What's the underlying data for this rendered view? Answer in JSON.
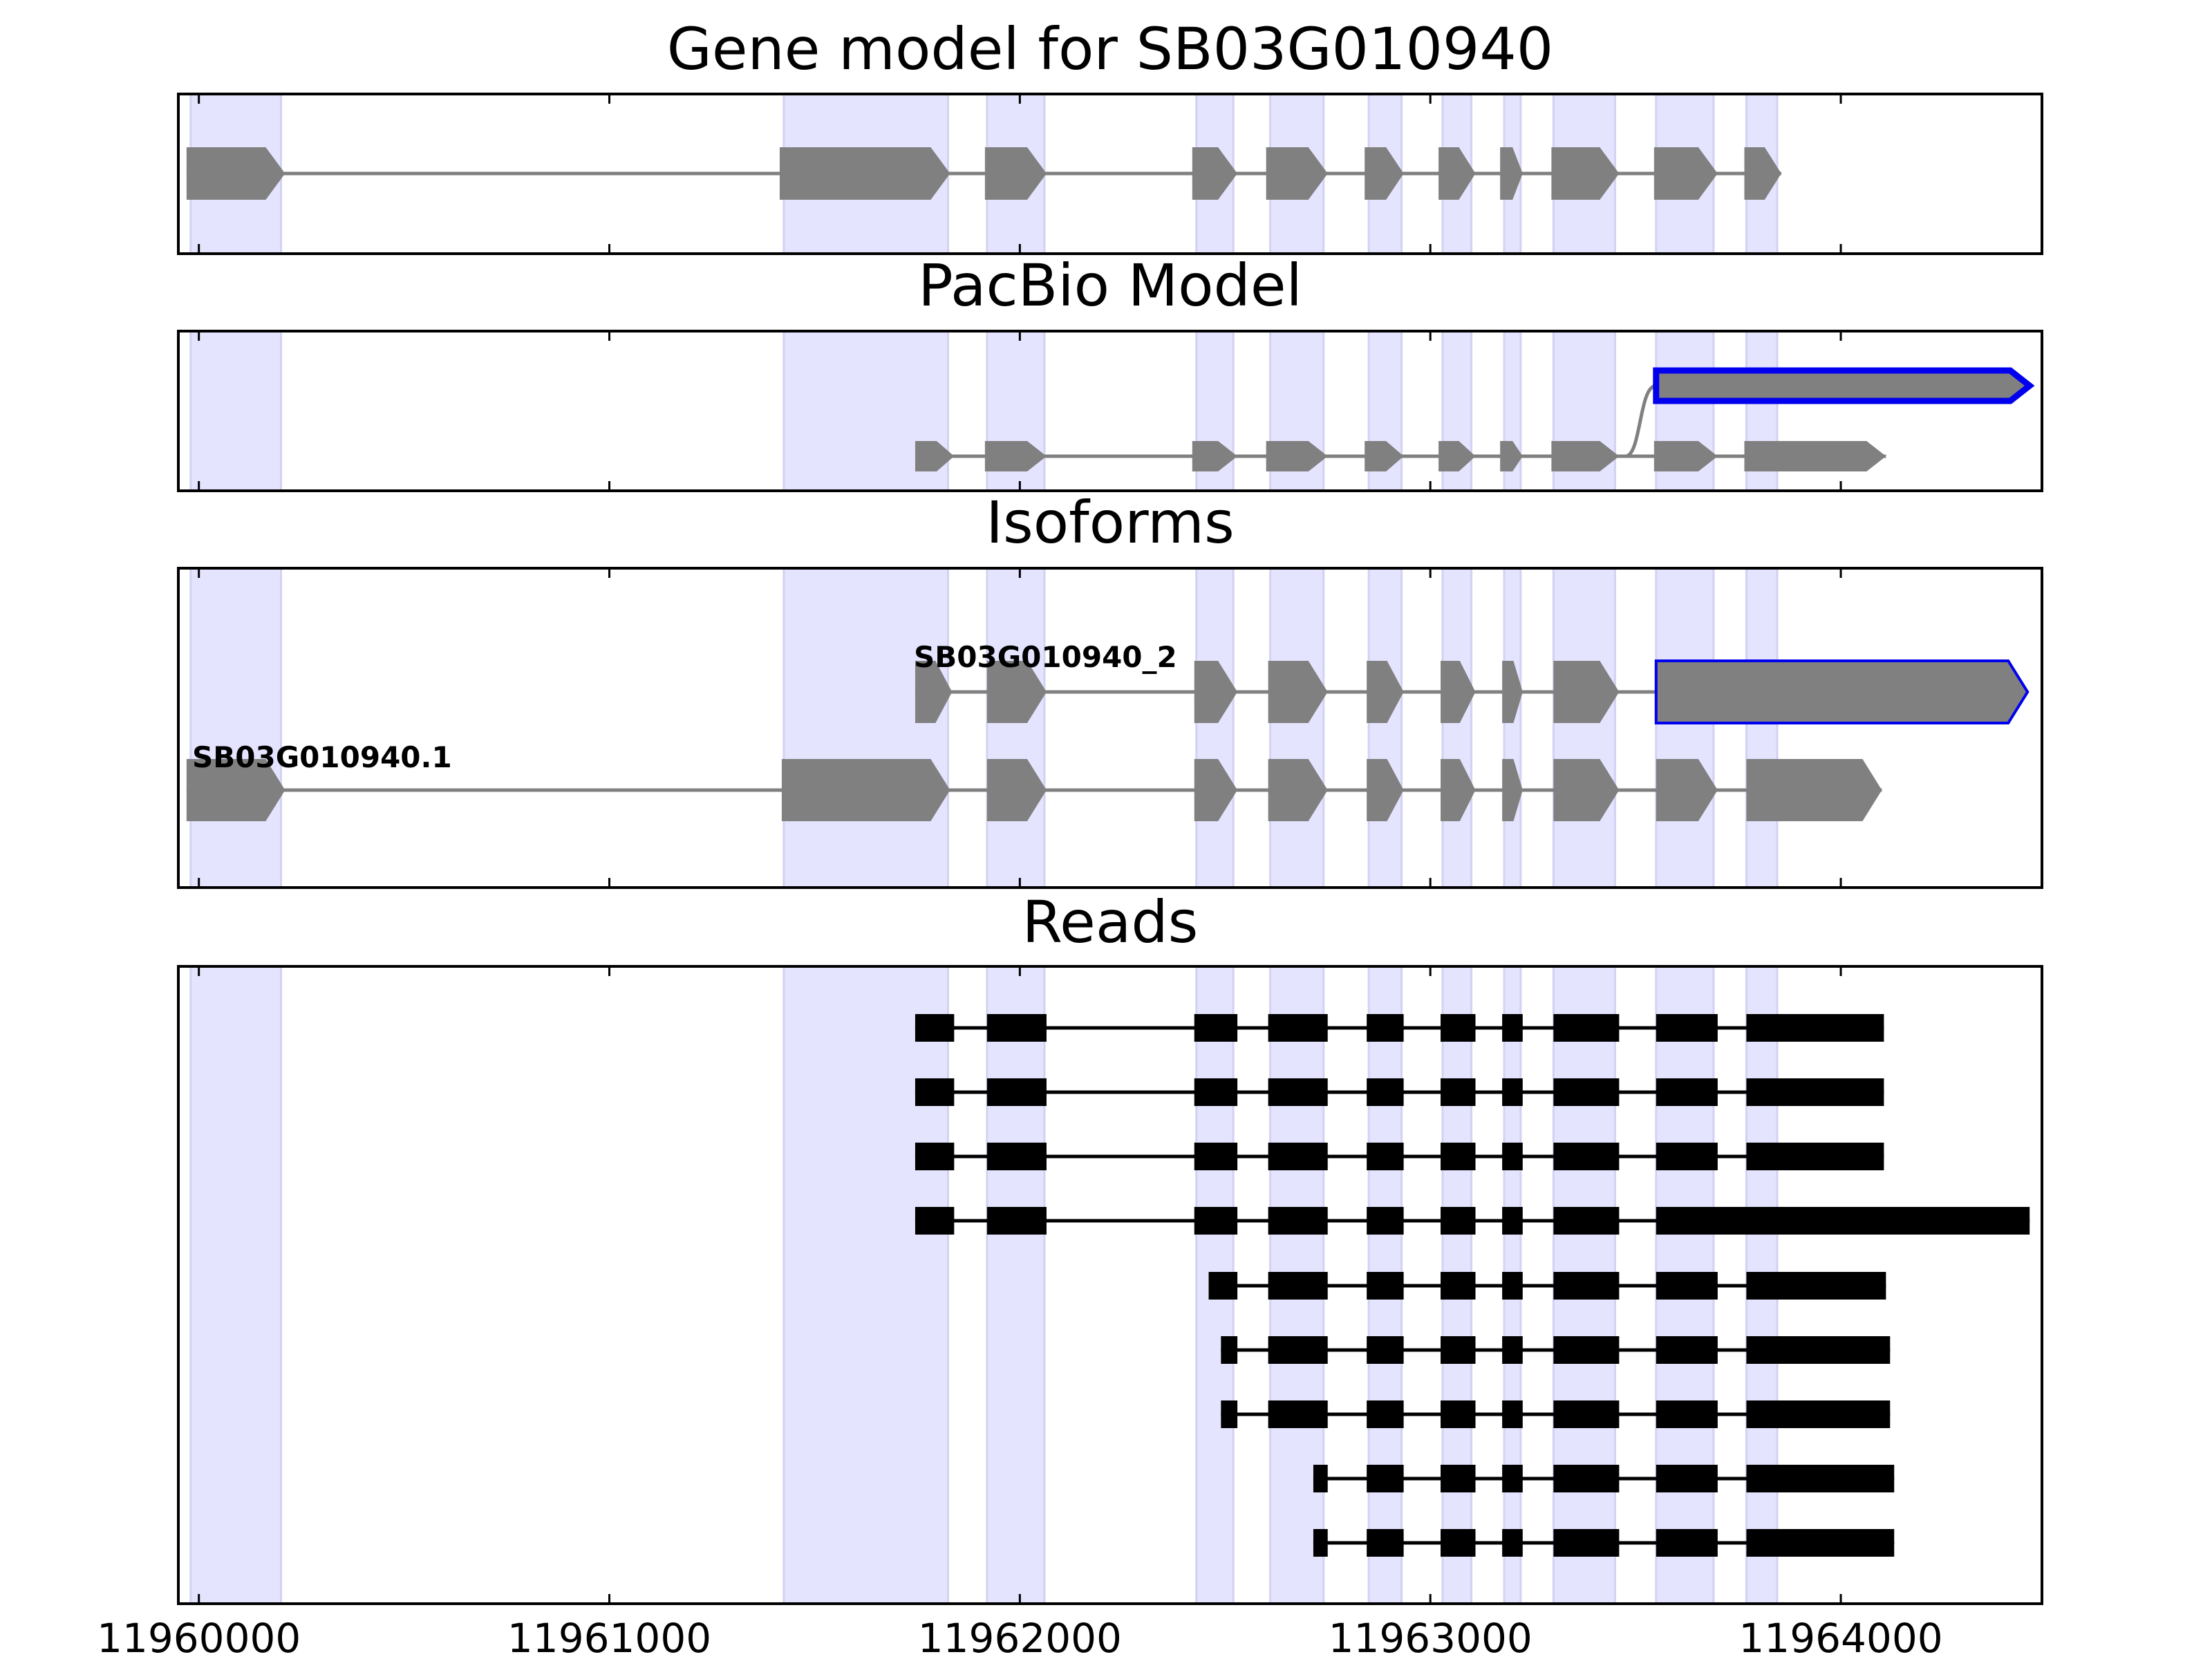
{
  "chart_data": {
    "type": "gene-structure",
    "x_range": [
      11959950,
      11964490
    ],
    "xticks": [
      11960000,
      11961000,
      11962000,
      11963000,
      11964000
    ],
    "xtick_labels": [
      "11960000",
      "11961000",
      "11962000",
      "11963000",
      "11964000"
    ],
    "highlight_color": "#e4e4ff",
    "highlight_regions": [
      [
        11959980,
        11960200
      ],
      [
        11961425,
        11961825
      ],
      [
        11961920,
        11962060
      ],
      [
        11962430,
        11962520
      ],
      [
        11962610,
        11962740
      ],
      [
        11962850,
        11962930
      ],
      [
        11963030,
        11963100
      ],
      [
        11963180,
        11963220
      ],
      [
        11963300,
        11963450
      ],
      [
        11963550,
        11963690
      ],
      [
        11963770,
        11963845
      ]
    ],
    "panels": [
      {
        "title": "Gene model for SB03G010940",
        "rows": 1,
        "transcripts": [
          {
            "label": "",
            "row": 0,
            "exons": [
              [
                11959970,
                11960210
              ],
              [
                11961415,
                11961830
              ],
              [
                11961915,
                11962065
              ],
              [
                11962420,
                11962530
              ],
              [
                11962600,
                11962750
              ],
              [
                11962840,
                11962935
              ],
              [
                11963020,
                11963110
              ],
              [
                11963170,
                11963225
              ],
              [
                11963295,
                11963460
              ],
              [
                11963545,
                11963700
              ],
              [
                11963765,
                11963855
              ]
            ],
            "highlight_last": false
          }
        ]
      },
      {
        "title": "PacBio Model",
        "rows": 2,
        "transcripts": [
          {
            "label": "",
            "row": 0,
            "exons": [
              [
                11963550,
                11964460
              ]
            ],
            "highlight_last": true,
            "branch_from": [
              11963455,
              1
            ]
          },
          {
            "label": "",
            "row": 1,
            "exons": [
              [
                11961745,
                11961840
              ],
              [
                11961915,
                11962065
              ],
              [
                11962420,
                11962530
              ],
              [
                11962600,
                11962750
              ],
              [
                11962840,
                11962935
              ],
              [
                11963020,
                11963110
              ],
              [
                11963170,
                11963225
              ],
              [
                11963295,
                11963460
              ],
              [
                11963545,
                11963700
              ],
              [
                11963765,
                11964110
              ]
            ],
            "highlight_last": false
          }
        ]
      },
      {
        "title": "Isoforms",
        "rows": 2,
        "transcripts": [
          {
            "label": "SB03G010940_2",
            "row": 0,
            "exons": [
              [
                11961745,
                11961835
              ],
              [
                11961920,
                11962065
              ],
              [
                11962425,
                11962530
              ],
              [
                11962605,
                11962750
              ],
              [
                11962845,
                11962935
              ],
              [
                11963025,
                11963110
              ],
              [
                11963175,
                11963225
              ],
              [
                11963300,
                11963460
              ],
              [
                11963550,
                11964455
              ]
            ],
            "highlight_last": true
          },
          {
            "label": "SB03G010940.1",
            "row": 1,
            "exons": [
              [
                11959970,
                11960210
              ],
              [
                11961420,
                11961830
              ],
              [
                11961920,
                11962065
              ],
              [
                11962425,
                11962530
              ],
              [
                11962605,
                11962750
              ],
              [
                11962845,
                11962935
              ],
              [
                11963025,
                11963110
              ],
              [
                11963175,
                11963225
              ],
              [
                11963300,
                11963460
              ],
              [
                11963550,
                11963700
              ],
              [
                11963770,
                11964100
              ]
            ],
            "highlight_last": false
          }
        ]
      },
      {
        "title": "Reads",
        "rows": 9,
        "reads": [
          [
            [
              11961745,
              11961840
            ],
            [
              11961920,
              11962065
            ],
            [
              11962425,
              11962530
            ],
            [
              11962605,
              11962750
            ],
            [
              11962845,
              11962935
            ],
            [
              11963025,
              11963110
            ],
            [
              11963175,
              11963225
            ],
            [
              11963300,
              11963460
            ],
            [
              11963550,
              11963700
            ],
            [
              11963770,
              11964105
            ]
          ],
          [
            [
              11961745,
              11961840
            ],
            [
              11961920,
              11962065
            ],
            [
              11962425,
              11962530
            ],
            [
              11962605,
              11962750
            ],
            [
              11962845,
              11962935
            ],
            [
              11963025,
              11963110
            ],
            [
              11963175,
              11963225
            ],
            [
              11963300,
              11963460
            ],
            [
              11963550,
              11963700
            ],
            [
              11963770,
              11964105
            ]
          ],
          [
            [
              11961745,
              11961840
            ],
            [
              11961920,
              11962065
            ],
            [
              11962425,
              11962530
            ],
            [
              11962605,
              11962750
            ],
            [
              11962845,
              11962935
            ],
            [
              11963025,
              11963110
            ],
            [
              11963175,
              11963225
            ],
            [
              11963300,
              11963460
            ],
            [
              11963550,
              11963700
            ],
            [
              11963770,
              11964105
            ]
          ],
          [
            [
              11961745,
              11961840
            ],
            [
              11961920,
              11962065
            ],
            [
              11962425,
              11962530
            ],
            [
              11962605,
              11962750
            ],
            [
              11962845,
              11962935
            ],
            [
              11963025,
              11963110
            ],
            [
              11963175,
              11963225
            ],
            [
              11963300,
              11963460
            ],
            [
              11963550,
              11964460
            ]
          ],
          [
            [
              11962460,
              11962530
            ],
            [
              11962605,
              11962750
            ],
            [
              11962845,
              11962935
            ],
            [
              11963025,
              11963110
            ],
            [
              11963175,
              11963225
            ],
            [
              11963300,
              11963460
            ],
            [
              11963550,
              11963700
            ],
            [
              11963770,
              11964110
            ]
          ],
          [
            [
              11962490,
              11962530
            ],
            [
              11962605,
              11962750
            ],
            [
              11962845,
              11962935
            ],
            [
              11963025,
              11963110
            ],
            [
              11963175,
              11963225
            ],
            [
              11963300,
              11963460
            ],
            [
              11963550,
              11963700
            ],
            [
              11963770,
              11964120
            ]
          ],
          [
            [
              11962490,
              11962530
            ],
            [
              11962605,
              11962750
            ],
            [
              11962845,
              11962935
            ],
            [
              11963025,
              11963110
            ],
            [
              11963175,
              11963225
            ],
            [
              11963300,
              11963460
            ],
            [
              11963550,
              11963700
            ],
            [
              11963770,
              11964120
            ]
          ],
          [
            [
              11962715,
              11962750
            ],
            [
              11962845,
              11962935
            ],
            [
              11963025,
              11963110
            ],
            [
              11963175,
              11963225
            ],
            [
              11963300,
              11963460
            ],
            [
              11963550,
              11963700
            ],
            [
              11963770,
              11964130
            ]
          ],
          [
            [
              11962715,
              11962750
            ],
            [
              11962845,
              11962935
            ],
            [
              11963025,
              11963110
            ],
            [
              11963175,
              11963225
            ],
            [
              11963300,
              11963460
            ],
            [
              11963550,
              11963700
            ],
            [
              11963770,
              11964130
            ]
          ]
        ]
      }
    ]
  }
}
